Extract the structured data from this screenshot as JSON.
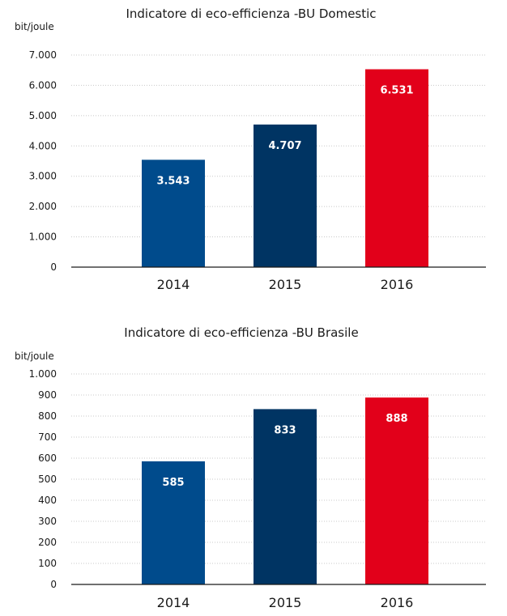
{
  "chart_data": [
    {
      "type": "bar",
      "title": "Indicatore di eco-efficienza -BU Domestic",
      "ylabel": "bit/joule",
      "xlabel": "",
      "categories": [
        "2014",
        "2015",
        "2016"
      ],
      "values": [
        3543,
        4707,
        6531
      ],
      "value_labels": [
        "3.543",
        "4.707",
        "6.531"
      ],
      "colors": [
        "#004b8c",
        "#003463",
        "#e2001a"
      ],
      "ylim": [
        0,
        7000
      ],
      "yticks": [
        0,
        1000,
        2000,
        3000,
        4000,
        5000,
        6000,
        7000
      ],
      "ytick_labels": [
        "0",
        "1.000",
        "2.000",
        "3.000",
        "4.000",
        "5.000",
        "6.000",
        "7.000"
      ],
      "grid": true
    },
    {
      "type": "bar",
      "title": "Indicatore di eco-efficienza -BU Brasile",
      "ylabel": "bit/joule",
      "xlabel": "",
      "categories": [
        "2014",
        "2015",
        "2016"
      ],
      "values": [
        585,
        833,
        888
      ],
      "value_labels": [
        "585",
        "833",
        "888"
      ],
      "colors": [
        "#004b8c",
        "#003463",
        "#e2001a"
      ],
      "ylim": [
        0,
        1000
      ],
      "yticks": [
        0,
        100,
        200,
        300,
        400,
        500,
        600,
        700,
        800,
        900,
        1000
      ],
      "ytick_labels": [
        "0",
        "100",
        "200",
        "300",
        "400",
        "500",
        "600",
        "700",
        "800",
        "900",
        "1.000"
      ],
      "grid": true
    }
  ]
}
